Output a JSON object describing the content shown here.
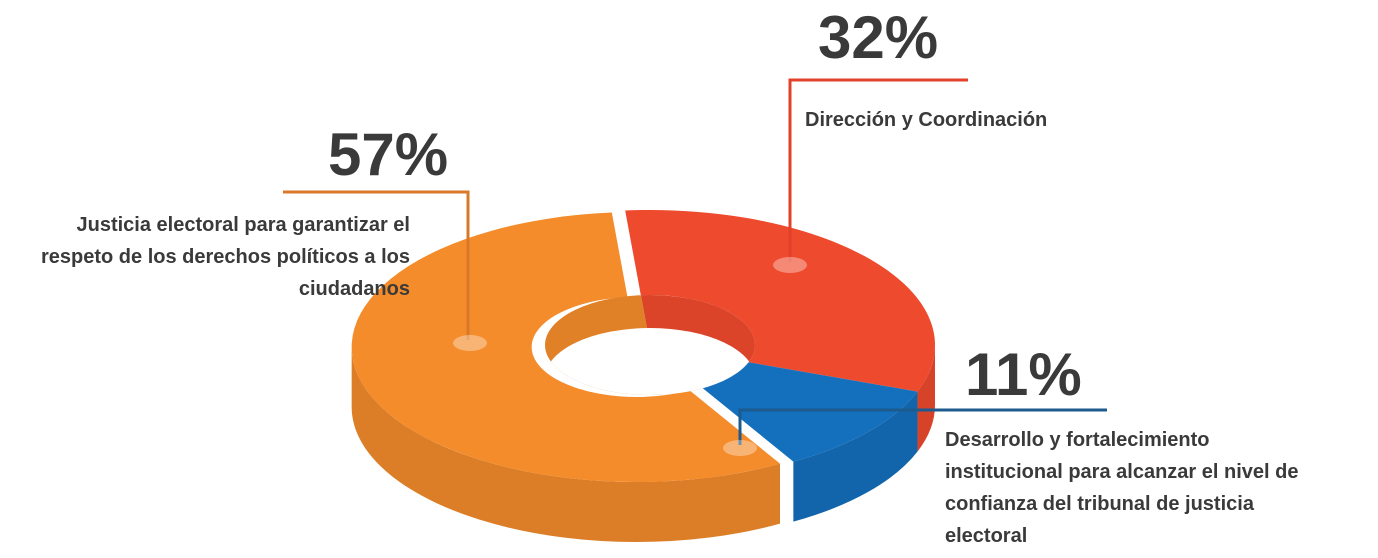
{
  "chart_data": {
    "type": "pie",
    "categories": [
      "Dirección y Coordinación",
      "Desarrollo y fortalecimiento institucional para alcanzar el nivel de confianza del tribunal de justicia electoral",
      "Justicia electoral para garantizar el respeto de los derechos políticos a los ciudadanos"
    ],
    "values": [
      32,
      11,
      57
    ],
    "value_labels": [
      "32%",
      "11%",
      "57%"
    ],
    "colors": [
      "#ee4a2d",
      "#1470bd",
      "#f48c2b"
    ],
    "donut": true
  }
}
